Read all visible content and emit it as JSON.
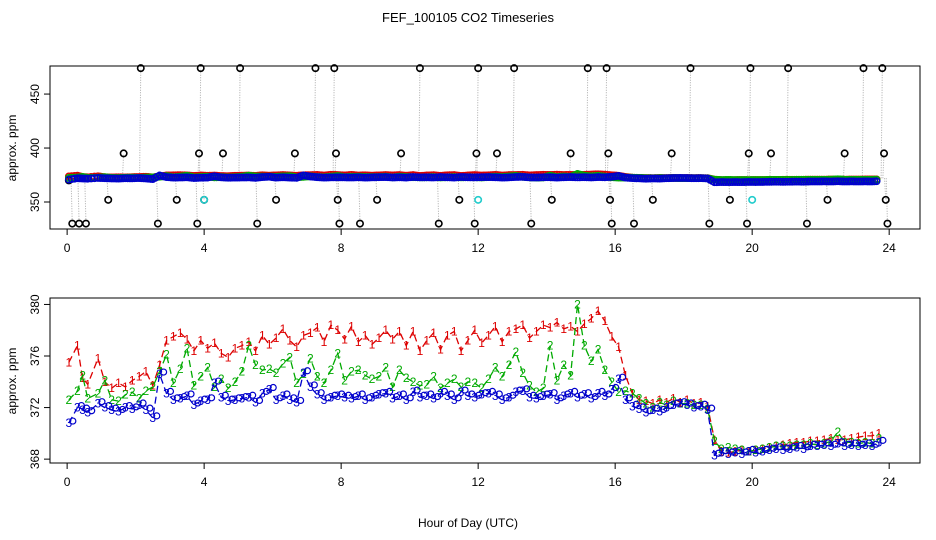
{
  "title": "FEF_100105  CO2 Timeseries",
  "xlabel": "Hour of Day (UTC)",
  "colors": {
    "reference": "#000000",
    "level1": "#dd0000",
    "level2": "#00aa00",
    "level3": "#0000cc",
    "cyan": "#22cccc",
    "connector": "#aaaaaa"
  },
  "chart_data": [
    {
      "type": "scatter",
      "ylabel": "approx. ppm",
      "xlim": [
        -0.5,
        24.9
      ],
      "ylim": [
        325,
        476
      ],
      "xticks": [
        0,
        4,
        8,
        12,
        16,
        20,
        24
      ],
      "yticks": [
        350,
        400,
        450
      ],
      "reference_cycle": [
        [
          0.05,
          370
        ],
        [
          0.15,
          330
        ],
        [
          0.35,
          330
        ],
        [
          0.55,
          330
        ],
        [
          1.2,
          352
        ],
        [
          1.65,
          395
        ],
        [
          2.15,
          474
        ],
        [
          2.65,
          330
        ],
        [
          3.2,
          352
        ],
        [
          3.8,
          330
        ],
        [
          3.85,
          395
        ],
        [
          3.9,
          474
        ],
        [
          4.0,
          352
        ],
        [
          4.55,
          395
        ],
        [
          5.05,
          474
        ],
        [
          5.55,
          330
        ],
        [
          6.1,
          352
        ],
        [
          6.65,
          395
        ],
        [
          7.25,
          474
        ],
        [
          7.8,
          474
        ],
        [
          7.85,
          395
        ],
        [
          7.9,
          352
        ],
        [
          7.95,
          330
        ],
        [
          8.55,
          330
        ],
        [
          9.05,
          352
        ],
        [
          9.75,
          395
        ],
        [
          10.3,
          474
        ],
        [
          10.85,
          330
        ],
        [
          11.45,
          352
        ],
        [
          11.9,
          330
        ],
        [
          11.95,
          395
        ],
        [
          12.0,
          474
        ],
        [
          12.55,
          395
        ],
        [
          13.05,
          474
        ],
        [
          13.55,
          330
        ],
        [
          14.15,
          352
        ],
        [
          14.7,
          395
        ],
        [
          15.2,
          474
        ],
        [
          15.75,
          474
        ],
        [
          15.8,
          395
        ],
        [
          15.85,
          352
        ],
        [
          15.9,
          330
        ],
        [
          16.55,
          330
        ],
        [
          17.1,
          352
        ],
        [
          17.65,
          395
        ],
        [
          18.2,
          474
        ],
        [
          18.75,
          330
        ],
        [
          19.35,
          352
        ],
        [
          19.85,
          330
        ],
        [
          19.9,
          395
        ],
        [
          19.95,
          474
        ],
        [
          20.55,
          395
        ],
        [
          21.05,
          474
        ],
        [
          21.6,
          330
        ],
        [
          22.2,
          352
        ],
        [
          22.7,
          395
        ],
        [
          23.25,
          474
        ],
        [
          23.8,
          474
        ],
        [
          23.85,
          395
        ],
        [
          23.9,
          352
        ],
        [
          23.95,
          330
        ]
      ],
      "cyan_points": [
        [
          4.0,
          352
        ],
        [
          12.0,
          352
        ],
        [
          20.0,
          352
        ]
      ],
      "note_series": "green and blue circles trace the same hourly ambient data as the lower panel"
    },
    {
      "type": "line",
      "ylabel": "approx. ppm",
      "xlim": [
        -0.5,
        24.9
      ],
      "ylim": [
        367.7,
        380.5
      ],
      "xticks": [
        0,
        4,
        8,
        12,
        16,
        20,
        24
      ],
      "yticks": [
        368,
        372,
        376,
        380
      ],
      "series": [
        {
          "marker": "1",
          "key": "level1",
          "x": [
            0.05,
            0.3,
            0.45,
            0.6,
            0.9,
            1.1,
            1.3,
            1.5,
            1.7,
            1.9,
            2.1,
            2.3,
            2.5,
            2.7,
            2.9,
            3.1,
            3.3,
            3.5,
            3.7,
            3.9,
            4.1,
            4.3,
            4.5,
            4.7,
            4.9,
            5.1,
            5.3,
            5.5,
            5.7,
            5.9,
            6.1,
            6.3,
            6.5,
            6.7,
            6.9,
            7.1,
            7.3,
            7.5,
            7.7,
            7.9,
            8.1,
            8.3,
            8.5,
            8.7,
            8.9,
            9.1,
            9.3,
            9.5,
            9.7,
            9.9,
            10.1,
            10.3,
            10.5,
            10.7,
            10.9,
            11.1,
            11.3,
            11.5,
            11.7,
            11.9,
            12.1,
            12.3,
            12.5,
            12.7,
            12.9,
            13.1,
            13.3,
            13.5,
            13.7,
            13.9,
            14.1,
            14.3,
            14.5,
            14.7,
            14.9,
            15.1,
            15.3,
            15.5,
            15.7,
            15.9,
            16.1,
            16.3,
            16.5,
            16.7,
            16.9,
            17.1,
            17.3,
            17.5,
            17.7,
            17.9,
            18.1,
            18.3,
            18.5,
            18.7,
            18.9,
            19.1,
            19.3,
            19.5,
            19.7,
            19.9,
            20.1,
            20.3,
            20.5,
            20.7,
            20.9,
            21.1,
            21.3,
            21.5,
            21.7,
            21.9,
            22.1,
            22.3,
            22.5,
            22.7,
            22.9,
            23.1,
            23.3,
            23.5,
            23.7
          ],
          "y": [
            375.5,
            376.8,
            374.3,
            373.8,
            375.8,
            374.0,
            373.5,
            373.9,
            373.6,
            374.1,
            374.4,
            374.8,
            373.7,
            375.3,
            377.2,
            377.5,
            377.8,
            377.3,
            376.4,
            377.2,
            376.6,
            377.0,
            376.2,
            375.9,
            376.6,
            376.8,
            377.1,
            376.4,
            377.6,
            376.9,
            377.4,
            378.1,
            377.2,
            376.7,
            377.6,
            377.8,
            378.2,
            377.1,
            378.4,
            378.0,
            377.3,
            378.3,
            377.1,
            377.6,
            376.9,
            377.4,
            378.0,
            377.3,
            377.9,
            376.8,
            377.9,
            376.4,
            377.2,
            377.8,
            376.5,
            377.6,
            377.9,
            376.4,
            377.2,
            378.0,
            377.0,
            377.6,
            378.3,
            377.1,
            377.9,
            378.1,
            378.4,
            377.4,
            377.9,
            378.4,
            378.2,
            378.6,
            378.1,
            378.3,
            377.9,
            378.5,
            378.9,
            379.5,
            378.7,
            377.5,
            376.7,
            374.5,
            373.1,
            372.6,
            372.5,
            372.3,
            372.6,
            372.4,
            372.7,
            372.4,
            372.6,
            372.3,
            372.4,
            372.1,
            369.5,
            368.6,
            368.5,
            368.6,
            368.7,
            368.6,
            368.7,
            368.8,
            368.9,
            369.0,
            369.1,
            369.2,
            369.3,
            369.3,
            369.4,
            369.4,
            369.5,
            369.6,
            369.5,
            369.5,
            369.6,
            369.7,
            369.8,
            369.8,
            370.0
          ]
        },
        {
          "marker": "2",
          "key": "level2",
          "x": [
            0.05,
            0.3,
            0.45,
            0.6,
            0.9,
            1.1,
            1.3,
            1.5,
            1.7,
            1.9,
            2.1,
            2.3,
            2.5,
            2.7,
            2.9,
            3.1,
            3.3,
            3.5,
            3.7,
            3.9,
            4.1,
            4.3,
            4.5,
            4.7,
            4.9,
            5.1,
            5.3,
            5.5,
            5.7,
            5.9,
            6.1,
            6.3,
            6.5,
            6.7,
            6.9,
            7.1,
            7.3,
            7.5,
            7.7,
            7.9,
            8.1,
            8.3,
            8.5,
            8.7,
            8.9,
            9.1,
            9.3,
            9.5,
            9.7,
            9.9,
            10.1,
            10.3,
            10.5,
            10.7,
            10.9,
            11.1,
            11.3,
            11.5,
            11.7,
            11.9,
            12.1,
            12.3,
            12.5,
            12.7,
            12.9,
            13.1,
            13.3,
            13.5,
            13.7,
            13.9,
            14.1,
            14.3,
            14.5,
            14.7,
            14.9,
            15.1,
            15.3,
            15.5,
            15.7,
            15.9,
            16.1,
            16.3,
            16.5,
            16.7,
            16.9,
            17.1,
            17.3,
            17.5,
            17.7,
            17.9,
            18.1,
            18.3,
            18.5,
            18.7,
            18.9,
            19.1,
            19.3,
            19.5,
            19.7,
            19.9,
            20.1,
            20.3,
            20.5,
            20.7,
            20.9,
            21.1,
            21.3,
            21.5,
            21.7,
            21.9,
            22.1,
            22.3,
            22.5,
            22.7,
            22.9,
            23.1,
            23.3,
            23.5,
            23.7
          ],
          "y": [
            372.6,
            373.3,
            374.5,
            372.7,
            373.1,
            374.1,
            372.6,
            372.5,
            373.0,
            373.2,
            372.7,
            373.3,
            373.6,
            374.8,
            376.1,
            373.9,
            375.0,
            376.6,
            373.7,
            374.4,
            375.1,
            373.6,
            374.2,
            373.5,
            374.0,
            374.8,
            376.8,
            375.3,
            374.9,
            375.0,
            374.7,
            375.4,
            375.9,
            373.9,
            374.6,
            375.8,
            374.4,
            373.9,
            374.9,
            376.2,
            374.1,
            374.8,
            374.9,
            374.5,
            374.2,
            374.4,
            375.1,
            373.6,
            374.9,
            374.3,
            374.0,
            373.7,
            373.8,
            374.4,
            373.5,
            373.9,
            374.2,
            373.6,
            374.0,
            373.9,
            373.5,
            374.2,
            375.1,
            374.4,
            375.3,
            376.3,
            374.7,
            373.7,
            373.2,
            373.5,
            376.8,
            374.1,
            375.3,
            374.5,
            380.0,
            376.8,
            375.6,
            376.5,
            374.9,
            374.0,
            373.2,
            373.3,
            373.1,
            372.7,
            372.3,
            372.0,
            372.4,
            372.2,
            372.5,
            372.3,
            372.3,
            372.2,
            372.2,
            371.9,
            369.4,
            368.8,
            368.9,
            368.8,
            368.7,
            368.6,
            368.7,
            368.8,
            368.9,
            369.0,
            369.0,
            369.0,
            369.1,
            369.1,
            369.2,
            369.1,
            369.2,
            369.4,
            370.1,
            369.3,
            369.3,
            369.2,
            369.3,
            369.2,
            369.6
          ]
        },
        {
          "marker": "3",
          "key": "level3",
          "x": [
            0.05,
            0.3,
            0.45,
            0.6,
            0.9,
            1.1,
            1.3,
            1.5,
            1.7,
            1.9,
            2.1,
            2.3,
            2.5,
            2.7,
            2.9,
            3.1,
            3.3,
            3.5,
            3.7,
            3.9,
            4.1,
            4.3,
            4.5,
            4.7,
            4.9,
            5.1,
            5.3,
            5.5,
            5.7,
            5.9,
            6.1,
            6.3,
            6.5,
            6.7,
            6.9,
            7.1,
            7.3,
            7.5,
            7.7,
            7.9,
            8.1,
            8.3,
            8.5,
            8.7,
            8.9,
            9.1,
            9.3,
            9.5,
            9.7,
            9.9,
            10.1,
            10.3,
            10.5,
            10.7,
            10.9,
            11.1,
            11.3,
            11.5,
            11.7,
            11.9,
            12.1,
            12.3,
            12.5,
            12.7,
            12.9,
            13.1,
            13.3,
            13.5,
            13.7,
            13.9,
            14.1,
            14.3,
            14.5,
            14.7,
            14.9,
            15.1,
            15.3,
            15.5,
            15.7,
            15.9,
            16.1,
            16.3,
            16.5,
            16.7,
            16.9,
            17.1,
            17.3,
            17.5,
            17.7,
            17.9,
            18.1,
            18.3,
            18.5,
            18.7,
            18.9,
            19.1,
            19.3,
            19.5,
            19.7,
            19.9,
            20.1,
            20.3,
            20.5,
            20.7,
            20.9,
            21.1,
            21.3,
            21.5,
            21.7,
            21.9,
            22.1,
            22.3,
            22.5,
            22.7,
            22.9,
            23.1,
            23.3,
            23.5,
            23.7
          ],
          "y": [
            370.8,
            372.0,
            371.8,
            371.6,
            372.3,
            372.0,
            371.8,
            371.7,
            372.0,
            371.9,
            372.2,
            371.8,
            371.2,
            374.6,
            373.1,
            372.6,
            372.7,
            372.9,
            372.2,
            372.5,
            372.6,
            373.9,
            372.8,
            372.5,
            372.6,
            372.7,
            372.8,
            372.4,
            373.1,
            373.4,
            372.6,
            372.9,
            372.6,
            372.4,
            374.7,
            373.6,
            373.0,
            372.6,
            372.8,
            372.9,
            372.8,
            372.7,
            372.9,
            372.6,
            372.8,
            373.0,
            373.1,
            372.7,
            372.9,
            372.6,
            373.2,
            372.8,
            372.9,
            372.7,
            373.1,
            372.9,
            372.6,
            373.2,
            372.9,
            372.8,
            373.0,
            373.1,
            372.9,
            372.6,
            372.8,
            373.2,
            373.3,
            372.8,
            372.7,
            372.9,
            373.0,
            372.6,
            372.9,
            373.1,
            372.8,
            373.0,
            372.7,
            373.1,
            372.9,
            373.4,
            374.2,
            372.6,
            372.1,
            371.9,
            371.6,
            371.8,
            371.7,
            372.0,
            372.2,
            372.3,
            372.2,
            372.0,
            372.1,
            371.8,
            368.3,
            368.5,
            368.4,
            368.5,
            368.4,
            368.6,
            368.5,
            368.6,
            368.7,
            368.8,
            368.7,
            368.8,
            368.9,
            368.8,
            369.0,
            369.0,
            369.1,
            369.0,
            369.2,
            369.0,
            369.1,
            369.0,
            369.1,
            369.0,
            369.3
          ]
        }
      ]
    }
  ]
}
